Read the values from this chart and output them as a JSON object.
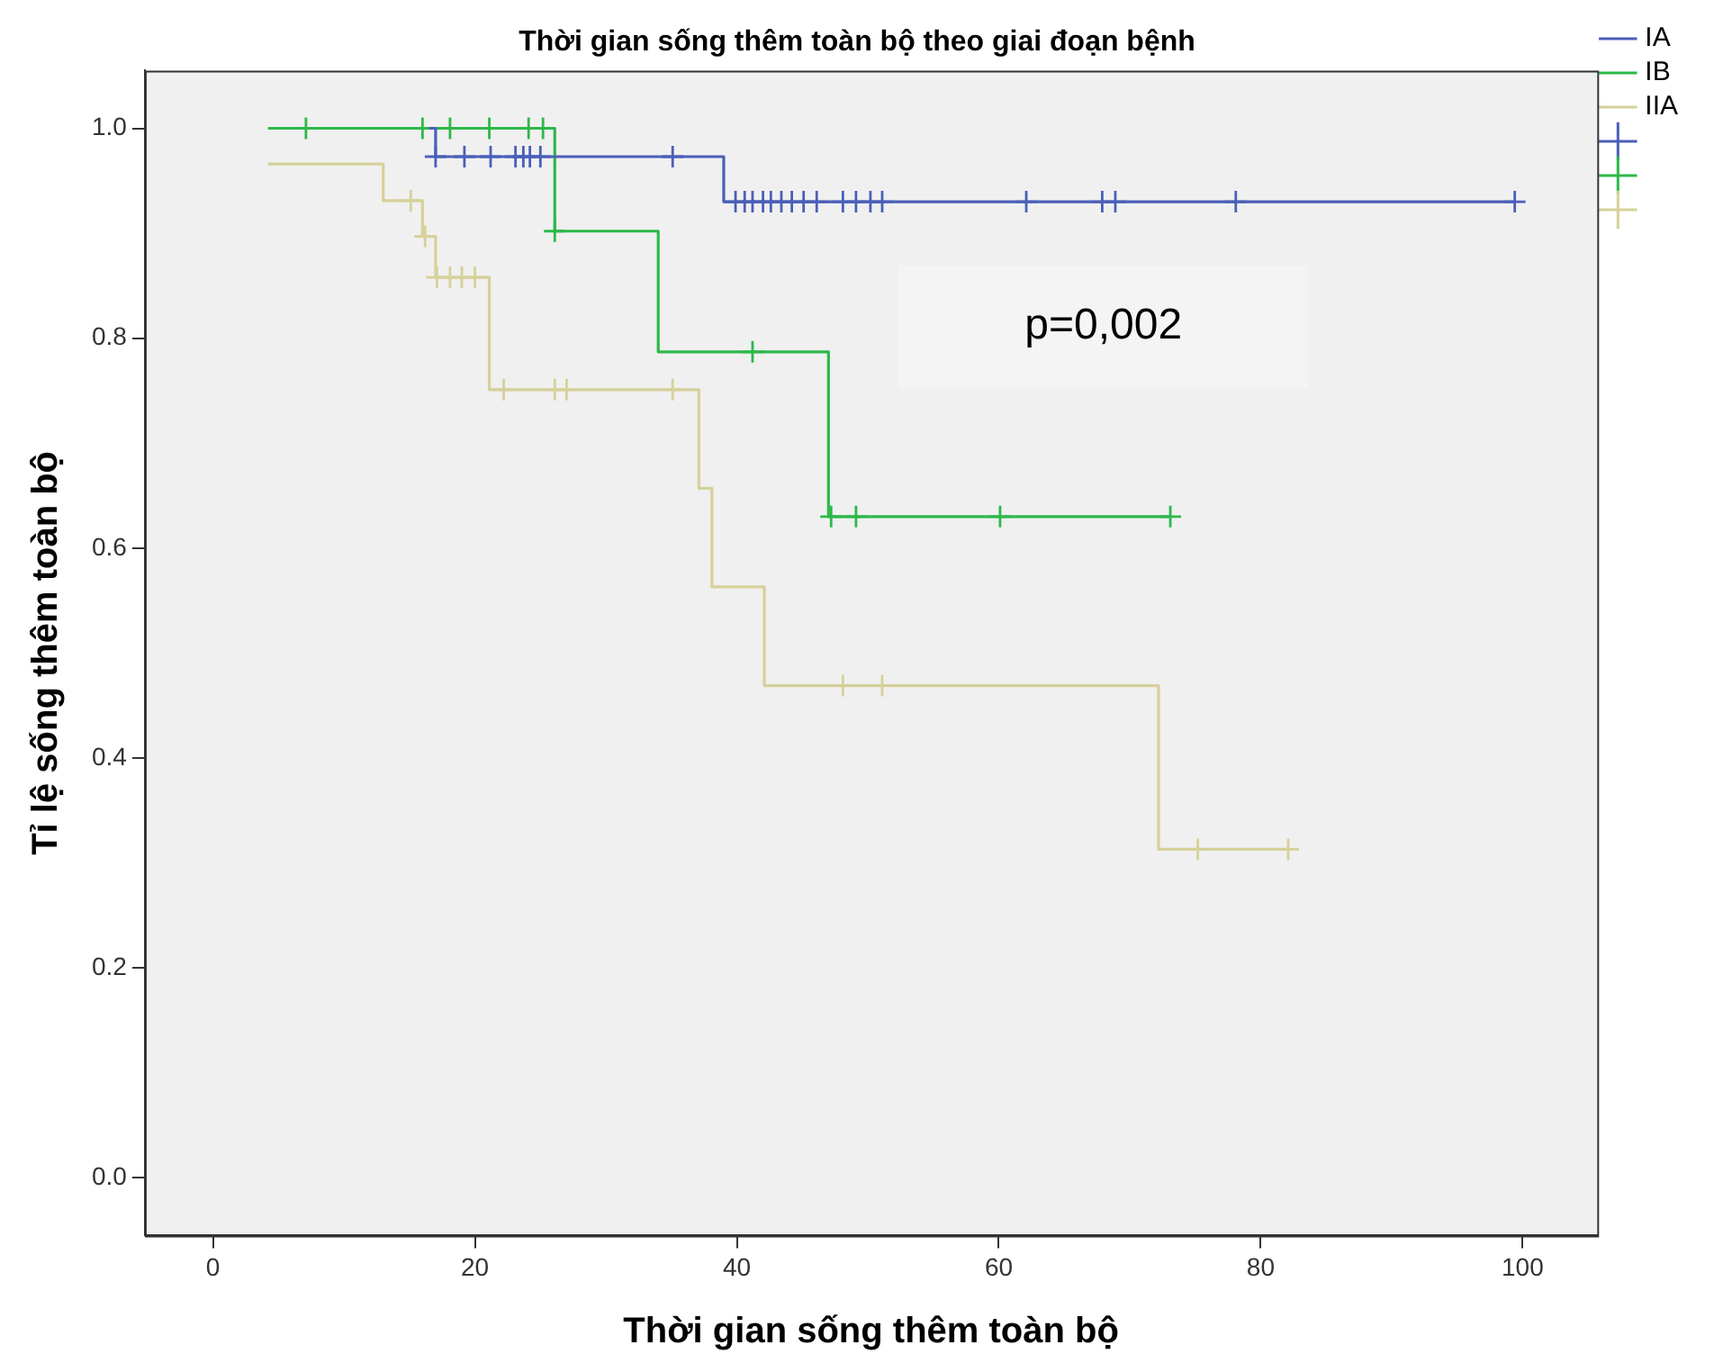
{
  "chart_data": {
    "type": "step",
    "title": "Thời gian sống thêm toàn bộ theo giai đoạn bệnh",
    "xlabel": "Thời gian sống thêm toàn bộ",
    "ylabel": "Tỉ lệ sống thêm toàn bộ",
    "xlim": [
      -5.2,
      105.7
    ],
    "xticks": [
      0,
      20,
      40,
      60,
      80,
      100
    ],
    "ylim": [
      -0.055,
      1.055
    ],
    "yticks": [
      {
        "value": 0,
        "label": "0.0"
      },
      {
        "value": 0.2,
        "label": "0.2"
      },
      {
        "value": 0.4,
        "label": "0.4"
      },
      {
        "value": 0.6,
        "label": "0.6"
      },
      {
        "value": 0.8,
        "label": "0.8"
      },
      {
        "value": 1,
        "label": "1.0"
      }
    ],
    "grid": false,
    "legend": "top right",
    "line_style": "solid",
    "annotations": [
      "p=0,002"
    ],
    "series": [
      {
        "name": "IA",
        "marker": "none",
        "color": "#4a5fb8",
        "x": [
          16.5,
          17,
          39,
          99.4
        ],
        "values": [
          1.0,
          0.973,
          0.93,
          0.93
        ]
      },
      {
        "name": "IB",
        "marker": "none",
        "color": "#2db84a",
        "x": [
          4.2,
          26.1,
          34,
          47,
          73.1
        ],
        "values": [
          1.0,
          0.902,
          0.787,
          0.63,
          0.63
        ]
      },
      {
        "name": "IIA",
        "marker": "none",
        "color": "#d6d09a",
        "x": [
          4.2,
          13,
          16,
          17,
          21.1,
          37.1,
          38.1,
          42.1,
          72.2,
          82.1
        ],
        "values": [
          0.966,
          0.931,
          0.897,
          0.858,
          0.751,
          0.657,
          0.563,
          0.469,
          0.313,
          0.313
        ]
      },
      {
        "type": "scatter",
        "marker": "cross",
        "color": "#4a5fb8",
        "x": [
          17,
          19.2,
          21.2,
          23.1,
          23.7,
          24.2,
          25,
          35.1,
          39.9,
          40.6,
          41.2,
          42,
          42.6,
          43.4,
          44.2,
          45.1,
          46.1,
          48.1,
          49.1,
          50.2,
          51.1,
          62.1,
          67.9,
          68.9,
          78.1,
          99.4
        ],
        "values": [
          0.973,
          0.973,
          0.973,
          0.973,
          0.973,
          0.973,
          0.973,
          0.973,
          0.93,
          0.93,
          0.93,
          0.93,
          0.93,
          0.93,
          0.93,
          0.93,
          0.93,
          0.93,
          0.93,
          0.93,
          0.93,
          0.93,
          0.93,
          0.93,
          0.93,
          0.93
        ]
      },
      {
        "type": "scatter",
        "marker": "cross",
        "color": "#2db84a",
        "x": [
          7.1,
          16,
          18.1,
          21.1,
          24.1,
          25.2,
          26.1,
          41.2,
          47.2,
          49.1,
          60.1,
          73.1
        ],
        "values": [
          1.0,
          1.0,
          1.0,
          1.0,
          1.0,
          1.0,
          0.902,
          0.787,
          0.63,
          0.63,
          0.63,
          0.63
        ]
      },
      {
        "type": "scatter",
        "marker": "cross",
        "color": "#d6d09a",
        "x": [
          15.1,
          16.2,
          17.1,
          18.1,
          19,
          20,
          22.2,
          26.1,
          27,
          35.1,
          48.1,
          51.1,
          75.2,
          82.1
        ],
        "values": [
          0.931,
          0.897,
          0.858,
          0.858,
          0.858,
          0.858,
          0.751,
          0.751,
          0.751,
          0.751,
          0.469,
          0.469,
          0.313,
          0.313
        ]
      }
    ]
  }
}
